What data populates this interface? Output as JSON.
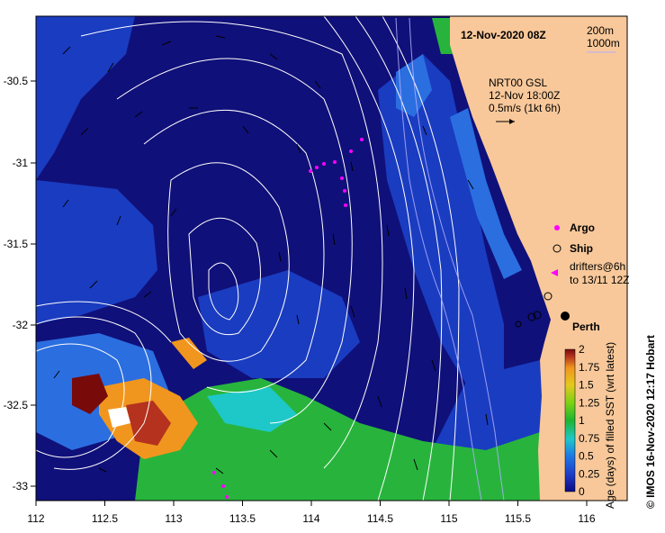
{
  "map": {
    "date_title": "12-Nov-2020 08Z",
    "depth_labels": [
      "200m",
      "1000m"
    ],
    "current_model": "NRT00 GSL",
    "current_time": "12-Nov 18:00Z",
    "current_scale": "0.5m/s (1kt 6h)",
    "place_label": "Perth",
    "credit": "© IMOS 16-Nov-2020 12:17 Hobart"
  },
  "legend": {
    "argo": "Argo",
    "ship": "Ship",
    "drifters_line1": "drifters@6h",
    "drifters_line2": "to 13/11 12Z"
  },
  "colorbar": {
    "title": "Age (days) of filled SST (wrt latest)",
    "ticks": [
      "0",
      "0.25",
      "0.5",
      "0.75",
      "1",
      "1.25",
      "1.5",
      "1.75",
      "2"
    ],
    "colors": [
      "#0a0a80",
      "#1e3cc8",
      "#1e78e6",
      "#1ec8c8",
      "#1eb432",
      "#78d214",
      "#e6c81e",
      "#f0961e",
      "#b4321e",
      "#780a0a"
    ]
  },
  "axes": {
    "x_ticks": [
      "112",
      "112.5",
      "113",
      "113.5",
      "114",
      "114.5",
      "115",
      "115.5",
      "116"
    ],
    "y_ticks": [
      "-30.5",
      "-31",
      "-31.5",
      "-32",
      "-32.5",
      "-33"
    ]
  },
  "colors": {
    "deep_ocean": "#10107a",
    "ocean_blue": "#1a3cc0",
    "mid_blue": "#2b6ee0",
    "green": "#28b43c",
    "land": "#f8c89a",
    "argo": "#ff00ff"
  }
}
